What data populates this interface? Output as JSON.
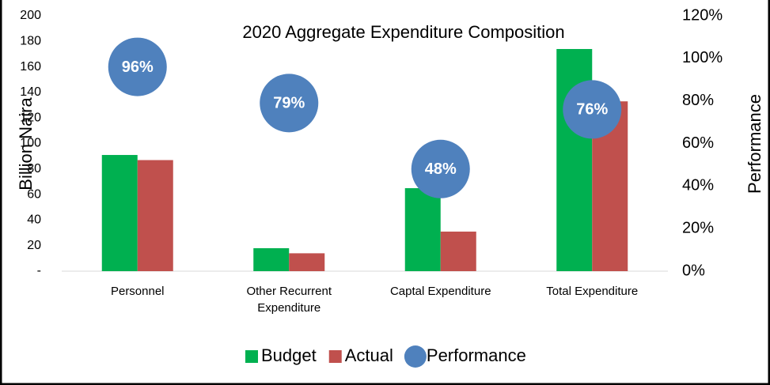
{
  "chart_data": {
    "type": "bar",
    "title": "2020 Aggregate Expenditure Composition",
    "ylabel": "Billion Naira",
    "y2label": "Performance",
    "categories": [
      "Personnel",
      "Other Recurrent Expenditure",
      "Captal Expenditure",
      "Total Expenditure"
    ],
    "series": [
      {
        "name": "Budget",
        "color": "#00b050",
        "type": "bar",
        "values": [
          91,
          18,
          65,
          174
        ]
      },
      {
        "name": "Actual",
        "color": "#c0504d",
        "type": "bar",
        "values": [
          87,
          14,
          31,
          133
        ]
      },
      {
        "name": "Performance",
        "color": "#4f81bd",
        "type": "scatter",
        "axis": "y2",
        "values": [
          96,
          79,
          48,
          76
        ],
        "value_labels": [
          "96%",
          "79%",
          "48%",
          "76%"
        ]
      }
    ],
    "ylim": [
      0,
      200
    ],
    "yticks": [
      {
        "value": 0,
        "label": "-"
      },
      20,
      40,
      60,
      80,
      100,
      120,
      140,
      160,
      180,
      200
    ],
    "y2lim": [
      0,
      120
    ],
    "y2ticks": [
      {
        "value": 0,
        "label": "0%"
      },
      {
        "value": 20,
        "label": "20%"
      },
      {
        "value": 40,
        "label": "40%"
      },
      {
        "value": 60,
        "label": "60%"
      },
      {
        "value": 80,
        "label": "80%"
      },
      {
        "value": 100,
        "label": "100%"
      },
      {
        "value": 120,
        "label": "120%"
      }
    ],
    "legend": "bottom"
  }
}
